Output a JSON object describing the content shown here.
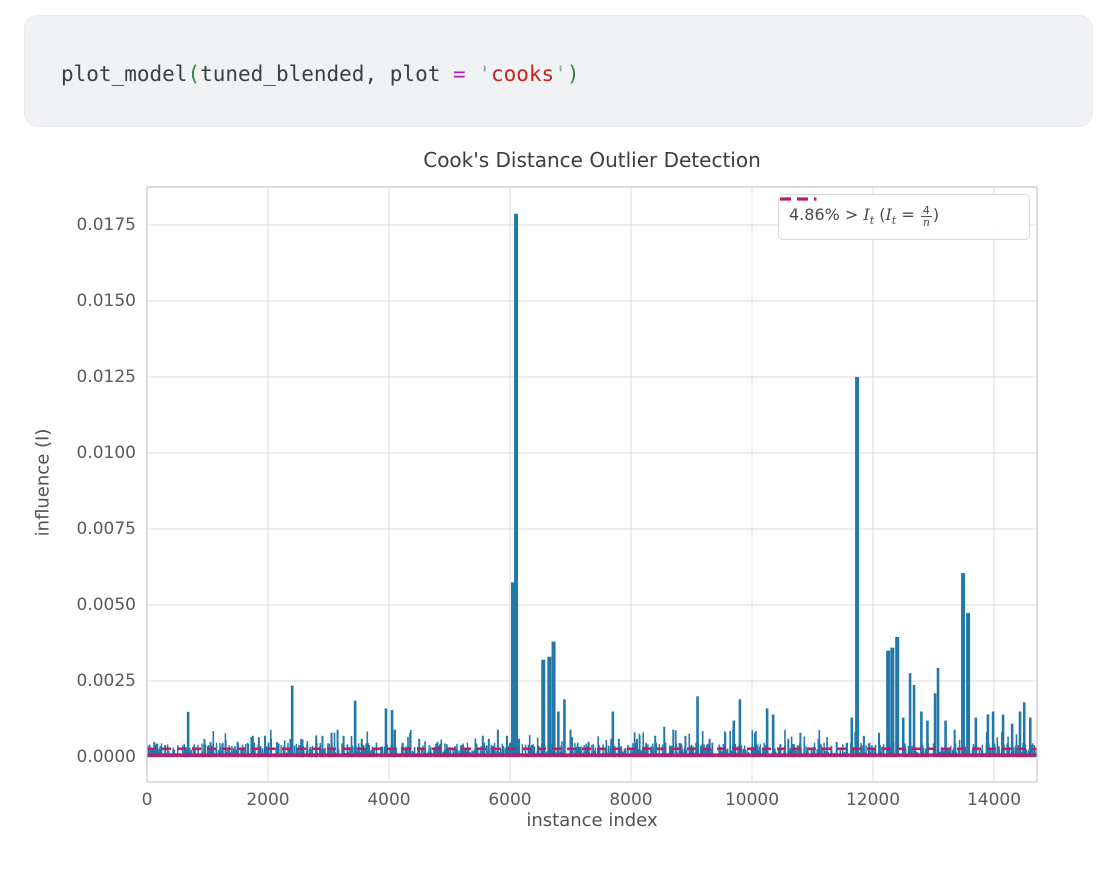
{
  "page": {
    "background": "#ffffff"
  },
  "code_cell": {
    "full_text": "plot_model(tuned_blended, plot = 'cooks')",
    "tokens": [
      {
        "text": "plot_model",
        "kind": "plain"
      },
      {
        "text": "(",
        "kind": "paren"
      },
      {
        "text": "tuned_blended",
        "kind": "plain"
      },
      {
        "text": ",",
        "kind": "plain"
      },
      {
        "text": " ",
        "kind": "plain"
      },
      {
        "text": "plot",
        "kind": "plain"
      },
      {
        "text": " ",
        "kind": "plain"
      },
      {
        "text": "=",
        "kind": "operator"
      },
      {
        "text": " ",
        "kind": "plain"
      },
      {
        "text": "'",
        "kind": "quote"
      },
      {
        "text": "cooks",
        "kind": "string"
      },
      {
        "text": "'",
        "kind": "quote"
      },
      {
        "text": ")",
        "kind": "paren"
      }
    ],
    "syntax_colors": {
      "plain": "#3c4043",
      "paren": "#2f8a3d",
      "operator": "#b01fb0",
      "quote": "#9aa0a6",
      "string": "#c5221f"
    },
    "background": "#f0f2f4"
  },
  "chart_data": {
    "type": "bar",
    "title": "Cook's Distance Outlier Detection",
    "xlabel": "instance index",
    "ylabel": "influence (I)",
    "xlim": [
      0,
      14711
    ],
    "ylim": [
      -0.00082,
      0.01875
    ],
    "grid": true,
    "legend_position": "upper right",
    "x_ticks": {
      "values": [
        0,
        2000,
        4000,
        6000,
        8000,
        10000,
        12000,
        14000
      ],
      "labels": [
        "0",
        "2000",
        "4000",
        "6000",
        "8000",
        "10000",
        "12000",
        "14000"
      ]
    },
    "y_ticks": {
      "values": [
        0.0,
        0.0025,
        0.005,
        0.0075,
        0.01,
        0.0125,
        0.015,
        0.0175
      ],
      "labels": [
        "0.0000",
        "0.0025",
        "0.0050",
        "0.0075",
        "0.0100",
        "0.0125",
        "0.0150",
        "0.0175"
      ]
    },
    "threshold": {
      "value": 0.00027,
      "percent_above": "4.86%",
      "style": "dashed"
    },
    "baseline": {
      "value": 0.0,
      "style": "solid"
    },
    "colors": {
      "bar": "#2279a7",
      "threshold_line": "#ba1d6e",
      "baseline_line": "#ba1d6e",
      "grid": "#dcdcdc",
      "spine": "#c8c8c8",
      "title": "#3d3d3d",
      "tick_text": "#5a5a5a",
      "axis_label_text": "#525252"
    },
    "spikes": [
      [
        120,
        0.0005
      ],
      [
        300,
        0.0004
      ],
      [
        680,
        0.00149
      ],
      [
        950,
        0.0006
      ],
      [
        1050,
        0.0005
      ],
      [
        1300,
        0.00055
      ],
      [
        1500,
        0.0005
      ],
      [
        1750,
        0.0007
      ],
      [
        1850,
        0.00065
      ],
      [
        1950,
        0.0007
      ],
      [
        2050,
        0.0006
      ],
      [
        2150,
        0.0005
      ],
      [
        2400,
        0.00235
      ],
      [
        2550,
        0.0006
      ],
      [
        2900,
        0.0007
      ],
      [
        3050,
        0.0008
      ],
      [
        3150,
        0.0009
      ],
      [
        3250,
        0.0007
      ],
      [
        3440,
        0.00186
      ],
      [
        3550,
        0.0006
      ],
      [
        3950,
        0.0016
      ],
      [
        4050,
        0.00155
      ],
      [
        4100,
        0.0009
      ],
      [
        4350,
        0.0008
      ],
      [
        4500,
        0.0006
      ],
      [
        4800,
        0.0005
      ],
      [
        5200,
        0.0004
      ],
      [
        5550,
        0.0007
      ],
      [
        5650,
        0.0006
      ],
      [
        5800,
        0.0009
      ],
      [
        5950,
        0.0007
      ],
      [
        6050,
        0.00575
      ],
      [
        6100,
        0.01787
      ],
      [
        6150,
        0.0006
      ],
      [
        6550,
        0.0032
      ],
      [
        6650,
        0.0033
      ],
      [
        6720,
        0.0038
      ],
      [
        6800,
        0.0015
      ],
      [
        6900,
        0.0019
      ],
      [
        7000,
        0.0009
      ],
      [
        7300,
        0.0005
      ],
      [
        7700,
        0.0015
      ],
      [
        7800,
        0.0006
      ],
      [
        8100,
        0.0006
      ],
      [
        8400,
        0.0007
      ],
      [
        8550,
        0.001
      ],
      [
        8700,
        0.0009
      ],
      [
        8900,
        0.0007
      ],
      [
        9100,
        0.002
      ],
      [
        9300,
        0.0006
      ],
      [
        9700,
        0.0012
      ],
      [
        9800,
        0.0019
      ],
      [
        10050,
        0.0008
      ],
      [
        10250,
        0.0016
      ],
      [
        10350,
        0.0014
      ],
      [
        10600,
        0.0006
      ],
      [
        10800,
        0.0008
      ],
      [
        11100,
        0.0006
      ],
      [
        11400,
        0.0005
      ],
      [
        11650,
        0.0013
      ],
      [
        11737,
        0.0125
      ],
      [
        11850,
        0.0007
      ],
      [
        12100,
        0.0008
      ],
      [
        12250,
        0.0035
      ],
      [
        12320,
        0.0036
      ],
      [
        12400,
        0.00395
      ],
      [
        12500,
        0.0013
      ],
      [
        12613,
        0.00276
      ],
      [
        12679,
        0.00237
      ],
      [
        12800,
        0.0015
      ],
      [
        12900,
        0.0012
      ],
      [
        13026,
        0.0021
      ],
      [
        13075,
        0.00293
      ],
      [
        13200,
        0.0012
      ],
      [
        13350,
        0.0009
      ],
      [
        13489,
        0.00605
      ],
      [
        13572,
        0.00474
      ],
      [
        13700,
        0.0013
      ],
      [
        13900,
        0.0014
      ],
      [
        13985,
        0.0015
      ],
      [
        14150,
        0.0014
      ],
      [
        14300,
        0.0011
      ],
      [
        14430,
        0.0015
      ],
      [
        14500,
        0.0018
      ],
      [
        14600,
        0.0013
      ]
    ],
    "noise": {
      "seed": 42,
      "count": 1500,
      "min": 2e-05,
      "max": 0.00048
    },
    "mid_noise": {
      "seed": 7,
      "count": 70,
      "min": 0.0004,
      "max": 0.0009
    }
  },
  "legend": {
    "full_label": "4.86% > It (It = 4/n)",
    "parts": {
      "before": "4.86% > ",
      "i1": "I",
      "sub1": "t",
      "mid": " (",
      "i2": "I",
      "sub2": "t",
      "eq": " = ",
      "frac_num": "4",
      "frac_den": "n",
      "after": ")"
    }
  }
}
